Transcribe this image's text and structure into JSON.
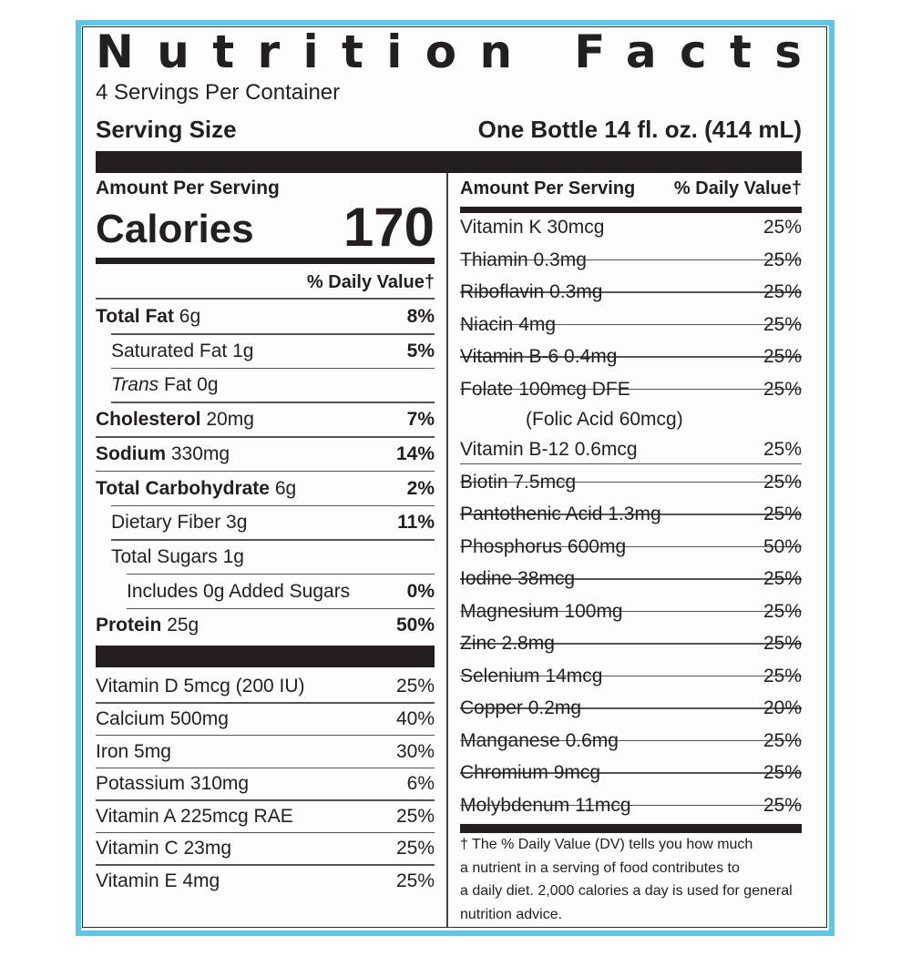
{
  "title": "Nutrition Facts",
  "servings_per_container": "4 Servings Per Container",
  "serving_size": {
    "label": "Serving Size",
    "value": "One Bottle 14 fl. oz. (414 mL)"
  },
  "left": {
    "amount_per_serving": "Amount Per Serving",
    "calories": {
      "label": "Calories",
      "value": "170"
    },
    "daily_value_header": "% Daily Value†",
    "nutrients": [
      {
        "name": "Total Fat",
        "amount": "6g",
        "dv": "8%",
        "sub": [
          {
            "name": "Saturated Fat",
            "amount": "1g",
            "dv": "5%"
          },
          {
            "italic_prefix": "Trans",
            "name": "Fat",
            "amount": "0g"
          }
        ]
      },
      {
        "name": "Cholesterol",
        "amount": "20mg",
        "dv": "7%"
      },
      {
        "name": "Sodium",
        "amount": "330mg",
        "dv": "14%"
      },
      {
        "name": "Total Carbohydrate",
        "amount": "6g",
        "dv": "2%",
        "sub": [
          {
            "name": "Dietary Fiber",
            "amount": "3g",
            "dv": "11%"
          },
          {
            "name": "Total Sugars",
            "amount": "1g",
            "sub": [
              {
                "name": "Includes 0g Added Sugars",
                "dv": "0%"
              }
            ]
          }
        ]
      },
      {
        "name": "Protein",
        "amount": "25g",
        "dv": "50%"
      }
    ],
    "vitamins": [
      {
        "name": "Vitamin D",
        "amount": "5mcg (200 IU)",
        "dv": "25%"
      },
      {
        "name": "Calcium",
        "amount": "500mg",
        "dv": "40%"
      },
      {
        "name": "Iron",
        "amount": "5mg",
        "dv": "30%"
      },
      {
        "name": "Potassium",
        "amount": "310mg",
        "dv": "6%"
      },
      {
        "name": "Vitamin A",
        "amount": "225mcg RAE",
        "dv": "25%"
      },
      {
        "name": "Vitamin C",
        "amount": "23mg",
        "dv": "25%"
      },
      {
        "name": "Vitamin E",
        "amount": "4mg",
        "dv": "25%"
      }
    ]
  },
  "right": {
    "amount_per_serving": "Amount Per Serving",
    "daily_value_header": "% Daily Value†",
    "vitamins": [
      {
        "name": "Vitamin K",
        "amount": "30mcg",
        "dv": "25%"
      },
      {
        "name": "Thiamin",
        "amount": "0.3mg",
        "dv": "25%"
      },
      {
        "name": "Riboflavin",
        "amount": "0.3mg",
        "dv": "25%"
      },
      {
        "name": "Niacin",
        "amount": "4mg",
        "dv": "25%"
      },
      {
        "name": "Vitamin B-6",
        "amount": "0.4mg",
        "dv": "25%"
      },
      {
        "name": "Folate",
        "amount": "100mcg DFE",
        "note": "(Folic Acid 60mcg)",
        "dv": "25%"
      },
      {
        "name": "Vitamin B-12",
        "amount": "0.6mcg",
        "dv": "25%"
      },
      {
        "name": "Biotin",
        "amount": "7.5mcg",
        "dv": "25%"
      },
      {
        "name": "Pantothenic Acid",
        "amount": "1.3mg",
        "dv": "25%"
      },
      {
        "name": "Phosphorus",
        "amount": "600mg",
        "dv": "50%"
      },
      {
        "name": "Iodine",
        "amount": "38mcg",
        "dv": "25%"
      },
      {
        "name": "Magnesium",
        "amount": "100mg",
        "dv": "25%"
      },
      {
        "name": "Zinc",
        "amount": "2.8mg",
        "dv": "25%"
      },
      {
        "name": "Selenium",
        "amount": "14mcg",
        "dv": "25%"
      },
      {
        "name": "Copper",
        "amount": "0.2mg",
        "dv": "20%"
      },
      {
        "name": "Manganese",
        "amount": "0.6mg",
        "dv": "25%"
      },
      {
        "name": "Chromium",
        "amount": "9mcg",
        "dv": "25%"
      },
      {
        "name": "Molybdenum",
        "amount": "11mcg",
        "dv": "25%"
      }
    ],
    "footnote": [
      "† The % Daily Value (DV) tells you how much",
      "a nutrient in a serving of food contributes to",
      "a daily diet. 2,000 calories a day is used for general",
      "nutrition advice."
    ]
  }
}
